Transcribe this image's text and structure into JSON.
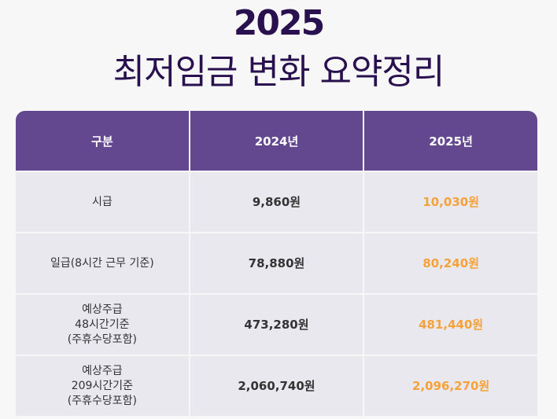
{
  "header": {
    "year": "2025",
    "title": "최저임금 변화 요약정리"
  },
  "table": {
    "columns": [
      "구분",
      "2024년",
      "2025년"
    ],
    "rows": [
      {
        "label": "시급",
        "y2024": "9,860원",
        "y2025": "10,030원"
      },
      {
        "label": "일급(8시간 근무 기준)",
        "y2024": "78,880원",
        "y2025": "80,240원"
      },
      {
        "label": "예상주급\n48시간기준\n(주휴수당포함)",
        "y2024": "473,280원",
        "y2025": "481,440원"
      },
      {
        "label": "예상주급\n209시간기준\n(주휴수당포함)",
        "y2024": "2,060,740원",
        "y2025": "2,096,270원"
      }
    ]
  },
  "colors": {
    "header_bg": "#634890",
    "title": "#28114e",
    "highlight": "#f5a23a",
    "cell_bg": "#eae8ef"
  }
}
